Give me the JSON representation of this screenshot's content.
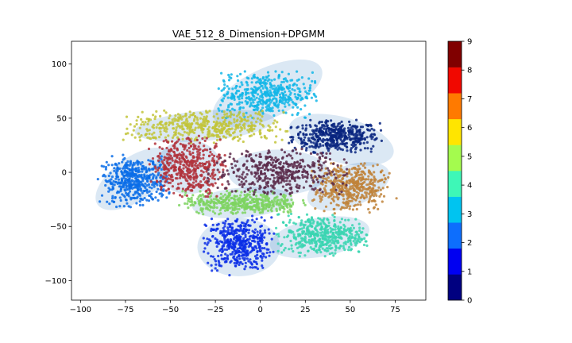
{
  "chart_data": {
    "type": "scatter",
    "title": "VAE_512_8_Dimension+DPGMM",
    "xlabel": "",
    "ylabel": "",
    "xlim": [
      -105,
      92
    ],
    "ylim": [
      -118,
      121
    ],
    "xticks": [
      -100,
      -75,
      -50,
      -25,
      0,
      25,
      50,
      75
    ],
    "yticks": [
      -100,
      -50,
      0,
      50,
      100
    ],
    "grid": false,
    "colorbar": {
      "range": [
        0,
        9
      ],
      "ticks": [
        0,
        1,
        2,
        3,
        4,
        5,
        6,
        7,
        8,
        9
      ],
      "colors": [
        "#000080",
        "#0000f1",
        "#0d6efd",
        "#00c4f0",
        "#3ef7b7",
        "#a4fb4e",
        "#ffe500",
        "#ff7a00",
        "#f10800",
        "#800000"
      ]
    },
    "clusters": [
      {
        "label": 0,
        "center": [
          42,
          33
        ],
        "spread": [
          12,
          7
        ],
        "color": "#08247f"
      },
      {
        "label": 1,
        "center": [
          -12,
          -66
        ],
        "spread": [
          9,
          12
        ],
        "color": "#0a2ee6"
      },
      {
        "label": 2,
        "center": [
          -70,
          -8
        ],
        "spread": [
          9,
          11
        ],
        "color": "#0a6de8"
      },
      {
        "label": 3,
        "center": [
          3,
          72
        ],
        "spread": [
          13,
          10
        ],
        "color": "#12b6e8"
      },
      {
        "label": 4,
        "center": [
          34,
          -58
        ],
        "spread": [
          12,
          9
        ],
        "color": "#38d5b0"
      },
      {
        "label": 5,
        "center": [
          -10,
          -28
        ],
        "spread": [
          16,
          5
        ],
        "color": "#7ed460"
      },
      {
        "label": 6,
        "center": [
          -30,
          42
        ],
        "spread": [
          22,
          7
        ],
        "color": "#c2c43a"
      },
      {
        "label": 7,
        "center": [
          50,
          -14
        ],
        "spread": [
          10,
          11
        ],
        "color": "#c0823a"
      },
      {
        "label": 8,
        "center": [
          -40,
          6
        ],
        "spread": [
          10,
          13
        ],
        "color": "#b0303a"
      },
      {
        "label": 9,
        "center": [
          10,
          0
        ],
        "spread": [
          18,
          10
        ],
        "color": "#5a2a4a"
      }
    ],
    "components": [
      {
        "center": [
          4,
          73
        ],
        "radii": [
          33,
          23
        ],
        "angle": -25
      },
      {
        "center": [
          45,
          30
        ],
        "radii": [
          30,
          21
        ],
        "angle": 15
      },
      {
        "center": [
          -31,
          43
        ],
        "radii": [
          39,
          14
        ],
        "angle": -5
      },
      {
        "center": [
          -70,
          -6
        ],
        "radii": [
          25,
          20
        ],
        "angle": -35
      },
      {
        "center": [
          -40,
          5
        ],
        "radii": [
          18,
          25
        ],
        "angle": 0
      },
      {
        "center": [
          10,
          0
        ],
        "radii": [
          28,
          21
        ],
        "angle": 0
      },
      {
        "center": [
          49,
          -13
        ],
        "radii": [
          24,
          19
        ],
        "angle": -20
      },
      {
        "center": [
          -10,
          -28
        ],
        "radii": [
          28,
          14
        ],
        "angle": -5
      },
      {
        "center": [
          -12,
          -69
        ],
        "radii": [
          23,
          27
        ],
        "angle": 0
      },
      {
        "center": [
          33,
          -60
        ],
        "radii": [
          28,
          18
        ],
        "angle": -10
      }
    ]
  }
}
